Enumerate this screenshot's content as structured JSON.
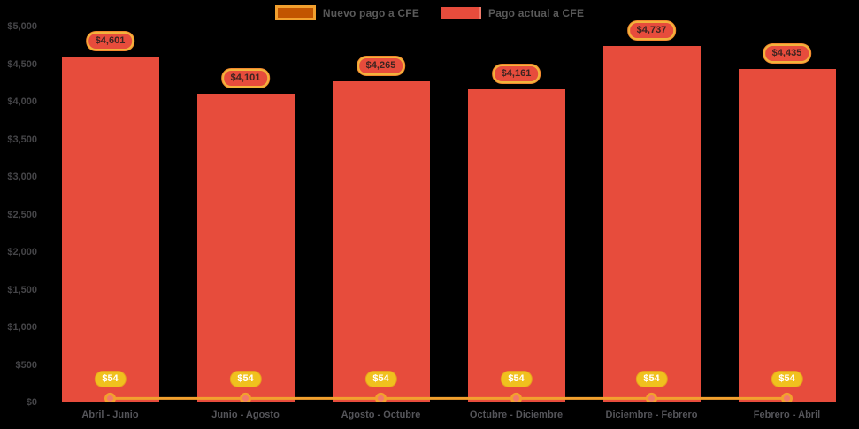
{
  "colors": {
    "background": "#000000",
    "bar": "#e74c3c",
    "line": "#f2a02e",
    "marker_fill": "#f2796a",
    "marker_stroke": "#f2a02e",
    "bar_pill_fill": "#e74c3c",
    "bar_pill_border": "#f2b33c",
    "line_pill_fill": "#f0c11e",
    "legend_nuevo_fill": "#c25400",
    "legend_nuevo_border": "#f2a02e",
    "axis_text": "#4d4d52"
  },
  "legend": {
    "items": [
      {
        "label": "Nuevo pago a CFE",
        "swatch": "nuevo-pago-swatch"
      },
      {
        "label": "Pago actual a CFE",
        "swatch": "pago-actual-swatch"
      }
    ]
  },
  "chart_data": {
    "type": "bar",
    "title": "",
    "xlabel": "",
    "ylabel": "",
    "grid": false,
    "legend_position": "top-center",
    "ylim": [
      0,
      5000
    ],
    "y_ticks": [
      {
        "value": 0,
        "label": "$0"
      },
      {
        "value": 500,
        "label": "$500"
      },
      {
        "value": 1000,
        "label": "$1,000"
      },
      {
        "value": 1500,
        "label": "$1,500"
      },
      {
        "value": 2000,
        "label": "$2,000"
      },
      {
        "value": 2500,
        "label": "$2,500"
      },
      {
        "value": 3000,
        "label": "$3,000"
      },
      {
        "value": 3500,
        "label": "$3,500"
      },
      {
        "value": 4000,
        "label": "$4,000"
      },
      {
        "value": 4500,
        "label": "$4,500"
      },
      {
        "value": 5000,
        "label": "$5,000"
      }
    ],
    "categories": [
      "Abril - Junio",
      "Junio - Agosto",
      "Agosto - Octubre",
      "Octubre - Diciembre",
      "Diciembre - Febrero",
      "Febrero - Abril"
    ],
    "series": [
      {
        "name": "Pago actual a CFE",
        "type": "bar",
        "values": [
          4601,
          4101,
          4265,
          4161,
          4737,
          4435
        ],
        "labels": [
          "$4,601",
          "$4,101",
          "$4,265",
          "$4,161",
          "$4,737",
          "$4,435"
        ]
      },
      {
        "name": "Nuevo pago a CFE",
        "type": "line",
        "values": [
          54,
          54,
          54,
          54,
          54,
          54
        ],
        "labels": [
          "$54",
          "$54",
          "$54",
          "$54",
          "$54",
          "$54"
        ]
      }
    ]
  }
}
